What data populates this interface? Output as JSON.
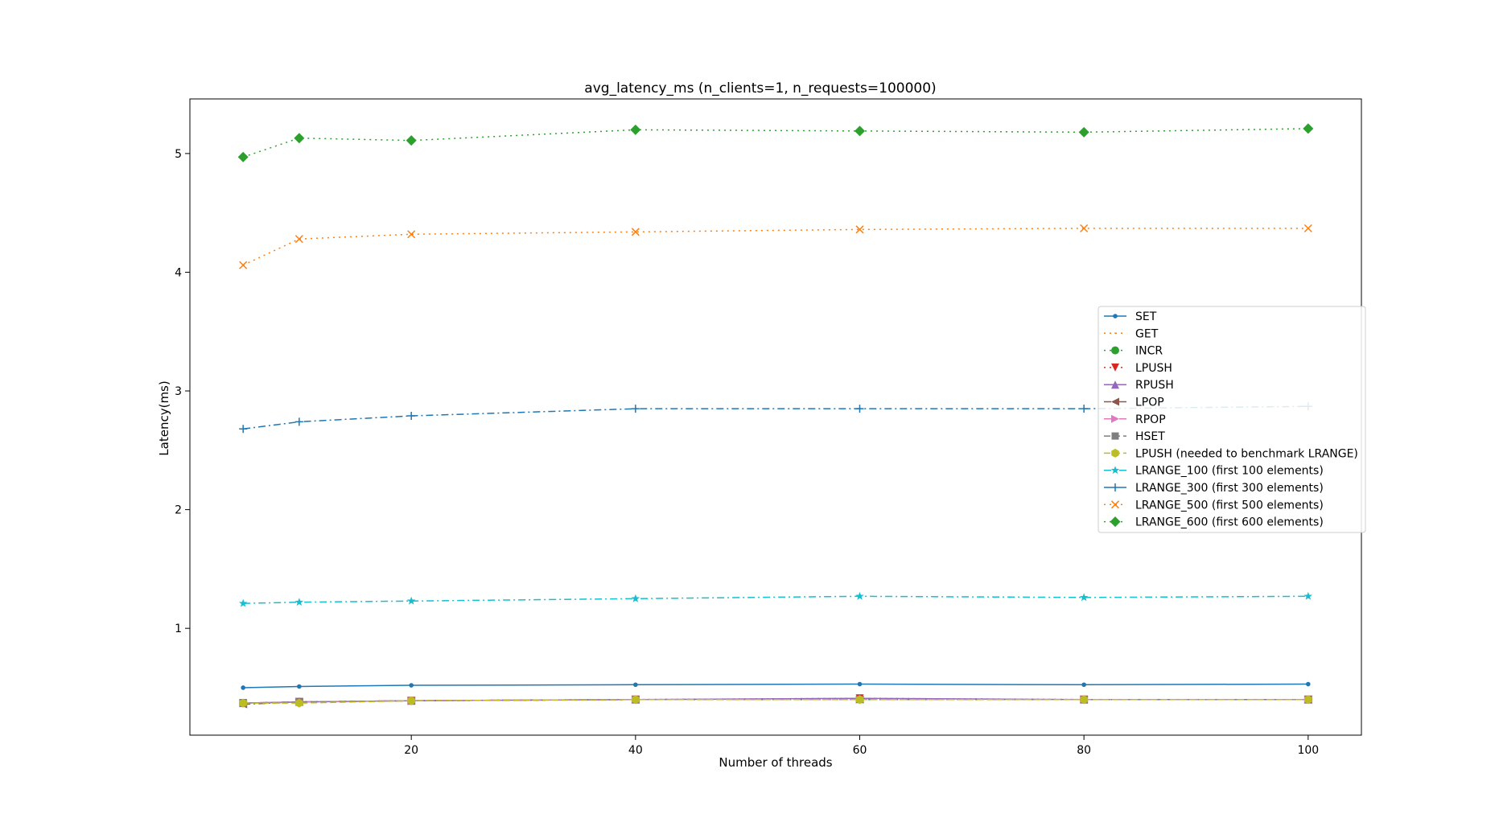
{
  "chart_data": {
    "type": "line",
    "title": "avg_latency_ms (n_clients=1, n_requests=100000)",
    "xlabel": "Number of threads",
    "ylabel": "Latency(ms)",
    "x": [
      5,
      10,
      20,
      40,
      60,
      80,
      100
    ],
    "xticks": [
      20,
      40,
      60,
      80,
      100
    ],
    "yticks": [
      1,
      2,
      3,
      4,
      5
    ],
    "xlim": [
      0.25,
      104.75
    ],
    "ylim": [
      0.1,
      5.46
    ],
    "grid": false,
    "legend_position": "center-right",
    "series": [
      {
        "name": "SET",
        "color": "#1f77b4",
        "marker": "point",
        "linestyle": "solid",
        "values": [
          0.5,
          0.51,
          0.52,
          0.525,
          0.53,
          0.525,
          0.53
        ]
      },
      {
        "name": "GET",
        "color": "#ff7f0e",
        "marker": "pixel",
        "linestyle": "dotted",
        "values": [
          0.37,
          0.38,
          0.39,
          0.4,
          0.4,
          0.4,
          0.4
        ]
      },
      {
        "name": "INCR",
        "color": "#2ca02c",
        "marker": "circle",
        "linestyle": "dotted",
        "values": [
          0.37,
          0.38,
          0.39,
          0.4,
          0.4,
          0.4,
          0.4
        ]
      },
      {
        "name": "LPUSH",
        "color": "#d62728",
        "marker": "triangle-down",
        "linestyle": "dotted",
        "values": [
          0.37,
          0.38,
          0.39,
          0.4,
          0.41,
          0.4,
          0.4
        ]
      },
      {
        "name": "RPUSH",
        "color": "#9467bd",
        "marker": "triangle-up",
        "linestyle": "solid",
        "values": [
          0.37,
          0.38,
          0.39,
          0.4,
          0.41,
          0.4,
          0.4
        ]
      },
      {
        "name": "LPOP",
        "color": "#8c564b",
        "marker": "triangle-left",
        "linestyle": "dashdot",
        "values": [
          0.36,
          0.38,
          0.39,
          0.4,
          0.4,
          0.4,
          0.4
        ]
      },
      {
        "name": "RPOP",
        "color": "#e377c2",
        "marker": "triangle-right",
        "linestyle": "dashdot",
        "values": [
          0.37,
          0.38,
          0.39,
          0.4,
          0.4,
          0.4,
          0.4
        ]
      },
      {
        "name": "HSET",
        "color": "#7f7f7f",
        "marker": "square",
        "linestyle": "dashed",
        "values": [
          0.37,
          0.38,
          0.39,
          0.4,
          0.4,
          0.4,
          0.4
        ]
      },
      {
        "name": "LPUSH (needed to benchmark LRANGE)",
        "color": "#bcbd22",
        "marker": "hexagon",
        "linestyle": "dashed",
        "values": [
          0.37,
          0.37,
          0.39,
          0.4,
          0.4,
          0.4,
          0.4
        ]
      },
      {
        "name": "LRANGE_100 (first 100 elements)",
        "color": "#17becf",
        "marker": "star",
        "linestyle": "dashdot",
        "values": [
          1.21,
          1.22,
          1.23,
          1.25,
          1.27,
          1.26,
          1.27
        ]
      },
      {
        "name": "LRANGE_300 (first 300 elements)",
        "color": "#1f77b4",
        "marker": "plus",
        "linestyle": "dashdot",
        "values": [
          2.68,
          2.74,
          2.79,
          2.85,
          2.85,
          2.85,
          2.87
        ]
      },
      {
        "name": "LRANGE_500 (first 500 elements)",
        "color": "#ff7f0e",
        "marker": "x",
        "linestyle": "dotted",
        "values": [
          4.06,
          4.28,
          4.32,
          4.34,
          4.36,
          4.37,
          4.37
        ]
      },
      {
        "name": "LRANGE_600 (first 600 elements)",
        "color": "#2ca02c",
        "marker": "diamond",
        "linestyle": "dotted",
        "values": [
          4.97,
          5.13,
          5.11,
          5.2,
          5.19,
          5.18,
          5.21
        ]
      }
    ]
  }
}
